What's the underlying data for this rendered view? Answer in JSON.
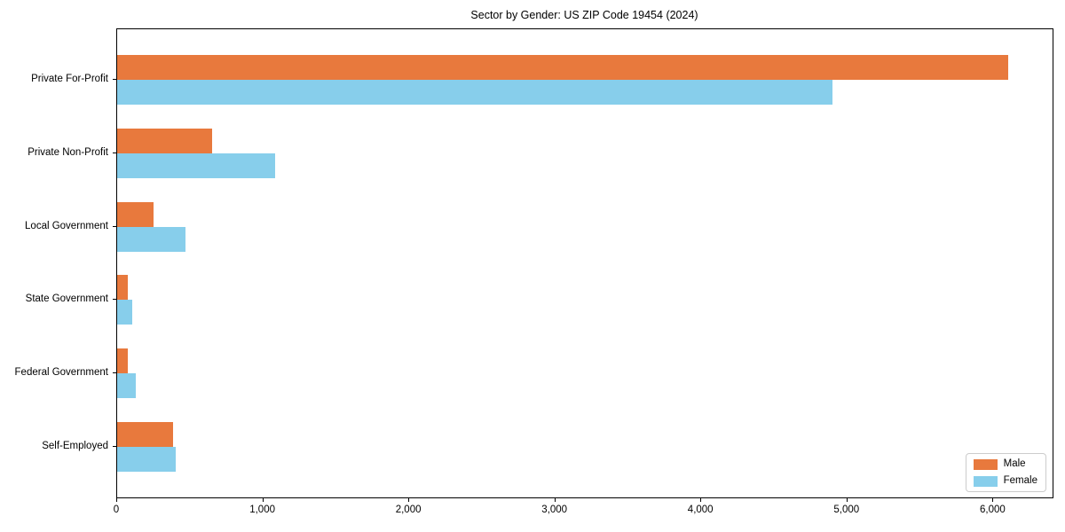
{
  "chart_data": {
    "type": "bar",
    "orientation": "horizontal",
    "title": "Sector by Gender: US ZIP Code 19454 (2024)",
    "categories": [
      "Private For-Profit",
      "Private Non-Profit",
      "Local Government",
      "State Government",
      "Federal Government",
      "Self-Employed"
    ],
    "series": [
      {
        "name": "Male",
        "color": "#e8793d",
        "values": [
          6100,
          650,
          250,
          75,
          70,
          380
        ]
      },
      {
        "name": "Female",
        "color": "#87ceeb",
        "values": [
          4900,
          1080,
          470,
          105,
          130,
          400
        ]
      }
    ],
    "xlabel": "",
    "ylabel": "",
    "xlim": [
      0,
      6405
    ],
    "xticks": [
      0,
      1000,
      2000,
      3000,
      4000,
      5000,
      6000
    ],
    "xtick_labels": [
      "0",
      "1,000",
      "2,000",
      "3,000",
      "4,000",
      "5,000",
      "6,000"
    ],
    "grid": false,
    "legend_position": "lower right",
    "colors": {
      "background": "#ffffff",
      "spine": "#000000",
      "text": "#000000",
      "legend_border": "#cccccc"
    }
  }
}
